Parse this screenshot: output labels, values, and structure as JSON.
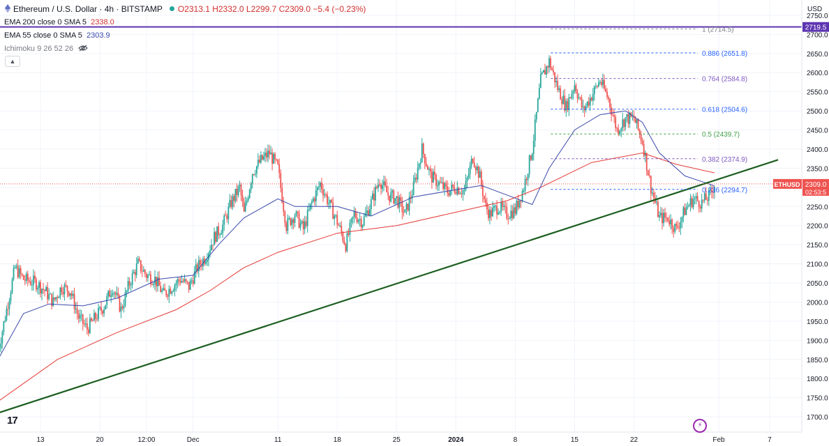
{
  "header": {
    "symbol_title": "Ethereum / U.S. Dollar · 4h · BITSTAMP",
    "ohlc": "O2313.1 H2332.0 L2299.7 C2309.0 −5.4 (−0.23%)",
    "ema200_label": "EMA 200 close 0 SMA 5",
    "ema200_value": "2338.0",
    "ema55_label": "EMA 55 close 0 SMA 5",
    "ema55_value": "2303.9",
    "ichimoku_label": "Ichimoku 9 26 52 26",
    "currency": "USD",
    "logo": "17"
  },
  "colors": {
    "up": "#26a69a",
    "down": "#ef5350",
    "ema200": "#e53935",
    "ema55": "#3949ab",
    "trendline": "#1b5e20",
    "resistance": "#5e35b1",
    "price_tag": "#ef5350"
  },
  "chart_data": {
    "type": "candlestick",
    "symbol": "ETHUSD",
    "timeframe": "4h",
    "ylim": [
      1660,
      2790
    ],
    "y_ticks": [
      1700,
      1750,
      1800,
      1850,
      1900,
      1950,
      2000,
      2050,
      2100,
      2150,
      2200,
      2250,
      2300,
      2350,
      2400,
      2450,
      2500,
      2550,
      2600,
      2650,
      2700,
      2750
    ],
    "x_ticks": [
      {
        "label": "13",
        "day": 13
      },
      {
        "label": "20",
        "day": 20
      },
      {
        "label": "12:00",
        "day": 25.5
      },
      {
        "label": "Dec",
        "day": 31
      },
      {
        "label": "11",
        "day": 41
      },
      {
        "label": "18",
        "day": 48
      },
      {
        "label": "25",
        "day": 55
      },
      {
        "label": "2024",
        "day": 62
      },
      {
        "label": "8",
        "day": 69
      },
      {
        "label": "15",
        "day": 76
      },
      {
        "label": "22",
        "day": 83
      },
      {
        "label": "Feb",
        "day": 93
      },
      {
        "label": "7",
        "day": 99
      }
    ],
    "close_path": [
      [
        8.0,
        1870
      ],
      [
        9.0,
        1980
      ],
      [
        10.0,
        2090
      ],
      [
        11.0,
        2060
      ],
      [
        12.5,
        2050
      ],
      [
        13.5,
        2030
      ],
      [
        14.5,
        2000
      ],
      [
        15.5,
        2040
      ],
      [
        16.5,
        2030
      ],
      [
        17.5,
        1960
      ],
      [
        18.5,
        1930
      ],
      [
        19.5,
        1960
      ],
      [
        20.5,
        1990
      ],
      [
        21.5,
        2040
      ],
      [
        22.5,
        1980
      ],
      [
        23.5,
        2050
      ],
      [
        24.5,
        2100
      ],
      [
        25.5,
        2070
      ],
      [
        26.5,
        2060
      ],
      [
        27.5,
        2020
      ],
      [
        28.5,
        2040
      ],
      [
        29.5,
        2060
      ],
      [
        30.5,
        2040
      ],
      [
        31.5,
        2090
      ],
      [
        32.5,
        2120
      ],
      [
        33.5,
        2170
      ],
      [
        34.5,
        2200
      ],
      [
        35.5,
        2260
      ],
      [
        36.5,
        2300
      ],
      [
        37.0,
        2230
      ],
      [
        38.0,
        2340
      ],
      [
        39.0,
        2370
      ],
      [
        40.0,
        2390
      ],
      [
        41.0,
        2350
      ],
      [
        42.0,
        2200
      ],
      [
        43.0,
        2230
      ],
      [
        44.0,
        2190
      ],
      [
        45.0,
        2260
      ],
      [
        46.0,
        2310
      ],
      [
        47.0,
        2260
      ],
      [
        48.0,
        2210
      ],
      [
        49.0,
        2150
      ],
      [
        50.0,
        2230
      ],
      [
        51.0,
        2210
      ],
      [
        52.0,
        2260
      ],
      [
        53.0,
        2320
      ],
      [
        54.0,
        2280
      ],
      [
        55.0,
        2270
      ],
      [
        56.0,
        2230
      ],
      [
        57.0,
        2300
      ],
      [
        58.0,
        2400
      ],
      [
        59.0,
        2330
      ],
      [
        60.0,
        2310
      ],
      [
        61.0,
        2290
      ],
      [
        62.0,
        2300
      ],
      [
        63.0,
        2290
      ],
      [
        64.0,
        2380
      ],
      [
        64.8,
        2330
      ],
      [
        65.5,
        2250
      ],
      [
        66.0,
        2230
      ],
      [
        67.0,
        2250
      ],
      [
        68.0,
        2230
      ],
      [
        69.0,
        2240
      ],
      [
        70.0,
        2300
      ],
      [
        71.0,
        2400
      ],
      [
        72.0,
        2580
      ],
      [
        73.0,
        2630
      ],
      [
        74.0,
        2560
      ],
      [
        75.0,
        2510
      ],
      [
        76.0,
        2570
      ],
      [
        77.0,
        2500
      ],
      [
        78.0,
        2540
      ],
      [
        79.0,
        2580
      ],
      [
        80.0,
        2530
      ],
      [
        81.0,
        2450
      ],
      [
        82.0,
        2480
      ],
      [
        83.0,
        2480
      ],
      [
        84.0,
        2420
      ],
      [
        85.0,
        2300
      ],
      [
        86.0,
        2220
      ],
      [
        87.0,
        2220
      ],
      [
        88.0,
        2190
      ],
      [
        89.0,
        2240
      ],
      [
        90.0,
        2270
      ],
      [
        91.0,
        2260
      ],
      [
        92.0,
        2280
      ],
      [
        92.5,
        2309
      ]
    ],
    "series": [
      {
        "name": "EMA 200",
        "points": [
          [
            8.0,
            1740
          ],
          [
            15.0,
            1850
          ],
          [
            22.0,
            1920
          ],
          [
            29.0,
            1980
          ],
          [
            33.0,
            2030
          ],
          [
            37.0,
            2090
          ],
          [
            41.0,
            2130
          ],
          [
            48.0,
            2180
          ],
          [
            55.0,
            2200
          ],
          [
            62.0,
            2235
          ],
          [
            68.0,
            2265
          ],
          [
            72.0,
            2300
          ],
          [
            78.0,
            2365
          ],
          [
            84.0,
            2390
          ],
          [
            88.0,
            2360
          ],
          [
            92.5,
            2338
          ]
        ]
      },
      {
        "name": "EMA 55",
        "points": [
          [
            8.0,
            1850
          ],
          [
            11.0,
            1970
          ],
          [
            14.0,
            1995
          ],
          [
            18.0,
            1990
          ],
          [
            22.0,
            2010
          ],
          [
            27.0,
            2060
          ],
          [
            31.0,
            2070
          ],
          [
            34.0,
            2150
          ],
          [
            37.0,
            2220
          ],
          [
            41.0,
            2270
          ],
          [
            43.0,
            2250
          ],
          [
            48.0,
            2250
          ],
          [
            52.0,
            2225
          ],
          [
            57.0,
            2275
          ],
          [
            61.0,
            2290
          ],
          [
            65.0,
            2305
          ],
          [
            68.0,
            2280
          ],
          [
            71.0,
            2255
          ],
          [
            73.0,
            2350
          ],
          [
            76.0,
            2450
          ],
          [
            79.0,
            2490
          ],
          [
            82.0,
            2500
          ],
          [
            84.0,
            2470
          ],
          [
            86.0,
            2390
          ],
          [
            89.0,
            2330
          ],
          [
            92.5,
            2304
          ]
        ]
      }
    ],
    "trendline": [
      [
        8.0,
        1710
      ],
      [
        100.0,
        2372
      ]
    ],
    "resistance_level": 2719.5,
    "resistance_label": "2719.5",
    "fibonacci": {
      "start_day": 73.2,
      "levels": [
        {
          "ratio": "1",
          "price": 2714.5,
          "label": "1 (2714.5)"
        },
        {
          "ratio": "0.886",
          "price": 2651.8,
          "label": "0.886 (2651.8)"
        },
        {
          "ratio": "0.764",
          "price": 2584.8,
          "label": "0.764 (2584.8)"
        },
        {
          "ratio": "0.618",
          "price": 2504.6,
          "label": "0.618 (2504.6)"
        },
        {
          "ratio": "0.5",
          "price": 2439.7,
          "label": "0.5 (2439.7)"
        },
        {
          "ratio": "0.382",
          "price": 2374.9,
          "label": "0.382 (2374.9)"
        },
        {
          "ratio": "0.236",
          "price": 2294.7,
          "label": "0.236 (2294.7)"
        }
      ],
      "colors": [
        "#787b86",
        "#2962ff",
        "#7e57c2",
        "#2962ff",
        "#43a047",
        "#7e57c2",
        "#2962ff"
      ]
    },
    "last_price": 2309.0,
    "last_price_label": "2309.0",
    "price_tag_symbol": "ETHUSD",
    "countdown": "02:53:5"
  }
}
